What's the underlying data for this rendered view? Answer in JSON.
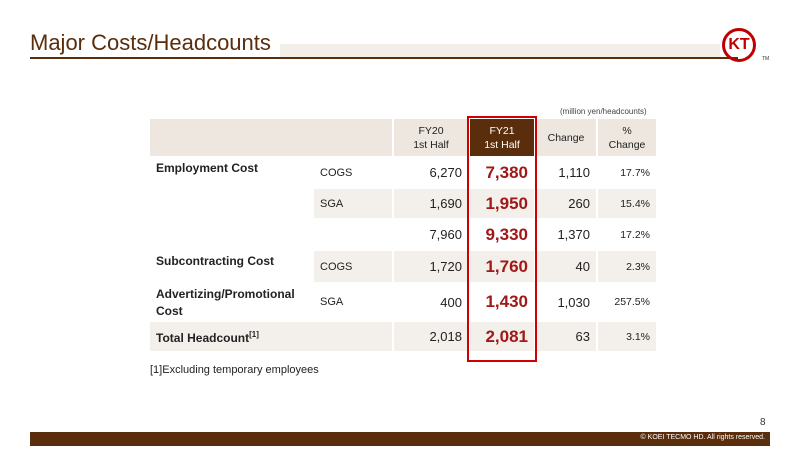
{
  "header": {
    "title": "Major Costs/Headcounts",
    "logo": "KT",
    "logo_mark": "TM"
  },
  "unit_note": "(million yen/headcounts)",
  "table": {
    "columns": [
      [
        "FY20",
        "1st Half"
      ],
      [
        "FY21",
        "1st Half"
      ],
      [
        "Change"
      ],
      [
        "% Change"
      ]
    ],
    "rows": [
      {
        "label": "Employment Cost",
        "sub": "COGS",
        "cells": [
          "6,270",
          "7,380",
          "1,110",
          "17.7%"
        ]
      },
      {
        "sub": "SGA",
        "cells": [
          "1,690",
          "1,950",
          "260",
          "15.4%"
        ]
      },
      {
        "cells": [
          "7,960",
          "9,330",
          "1,370",
          "17.2%"
        ]
      },
      {
        "label": "Subcontracting Cost",
        "sub": "COGS",
        "cells": [
          "1,720",
          "1,760",
          "40",
          "2.3%"
        ]
      },
      {
        "label": "Advertizing/Promotional Cost",
        "sub": "SGA",
        "cells": [
          "400",
          "1,430",
          "1,030",
          "257.5%"
        ]
      },
      {
        "label": "Total Headcount",
        "label_sup": "[1]",
        "cells": [
          "2,018",
          "2,081",
          "63",
          "3.1%"
        ]
      }
    ]
  },
  "footnote": "[1]Excluding temporary employees",
  "page_number": "8",
  "copyright": "© KOEI TECMO HD. All rights reserved."
}
